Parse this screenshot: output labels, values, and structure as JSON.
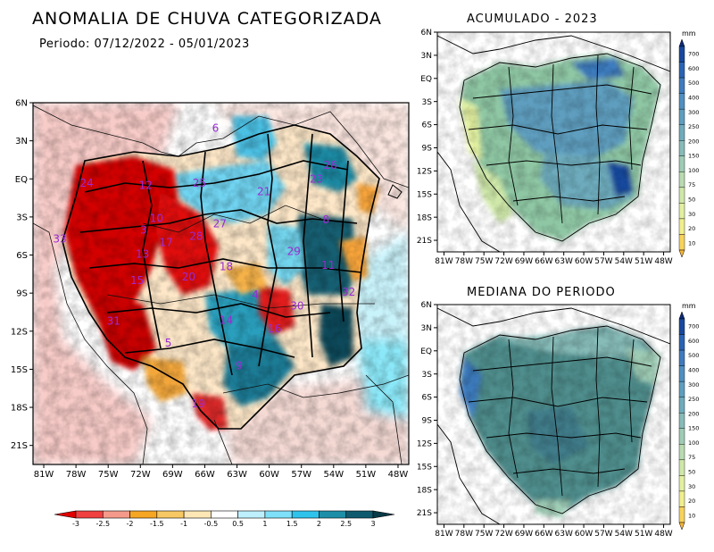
{
  "title": "ANOMALIA DE CHUVA CATEGORIZADA",
  "period": "Periodo: 07/12/2022 - 05/01/2023",
  "panels": {
    "accumulated_title": "ACUMULADO - 2023",
    "median_title": "MEDIANA DO PERIODO"
  },
  "main_map": {
    "lat_labels": [
      "6N",
      "3N",
      "EQ",
      "3S",
      "6S",
      "9S",
      "12S",
      "15S",
      "18S",
      "21S"
    ],
    "lon_labels": [
      "81W",
      "78W",
      "75W",
      "72W",
      "69W",
      "66W",
      "63W",
      "60W",
      "57W",
      "54W",
      "51W",
      "48W"
    ],
    "basin_numbers": [
      {
        "id": "6",
        "lon": -65,
        "lat": 3.7
      },
      {
        "id": "12",
        "lon": -71.5,
        "lat": -0.8
      },
      {
        "id": "24",
        "lon": -77,
        "lat": -0.6
      },
      {
        "id": "25",
        "lon": -66.5,
        "lat": -0.6
      },
      {
        "id": "21",
        "lon": -60.5,
        "lat": -1.3
      },
      {
        "id": "23",
        "lon": -55.6,
        "lat": -0.3
      },
      {
        "id": "26",
        "lon": -54.3,
        "lat": 0.8
      },
      {
        "id": "10",
        "lon": -70.5,
        "lat": -3.4
      },
      {
        "id": "3",
        "lon": -71.7,
        "lat": -4.3
      },
      {
        "id": "27",
        "lon": -64.6,
        "lat": -3.8
      },
      {
        "id": "28",
        "lon": -66.8,
        "lat": -4.8
      },
      {
        "id": "17",
        "lon": -69.6,
        "lat": -5.3
      },
      {
        "id": "8",
        "lon": -54.7,
        "lat": -3.5
      },
      {
        "id": "33",
        "lon": -79.5,
        "lat": -5.0
      },
      {
        "id": "13",
        "lon": -71.8,
        "lat": -6.2
      },
      {
        "id": "29",
        "lon": -57.7,
        "lat": -6.0
      },
      {
        "id": "18",
        "lon": -64,
        "lat": -7.2
      },
      {
        "id": "11",
        "lon": -54.5,
        "lat": -7.1
      },
      {
        "id": "15",
        "lon": -72.3,
        "lat": -8.3
      },
      {
        "id": "20",
        "lon": -67.5,
        "lat": -8.0
      },
      {
        "id": "4",
        "lon": -61.3,
        "lat": -9.4
      },
      {
        "id": "32",
        "lon": -52.6,
        "lat": -9.2
      },
      {
        "id": "30",
        "lon": -57.4,
        "lat": -10.3
      },
      {
        "id": "14",
        "lon": -64,
        "lat": -11.4
      },
      {
        "id": "31",
        "lon": -74.5,
        "lat": -11.5
      },
      {
        "id": "16",
        "lon": -59.5,
        "lat": -12.1
      },
      {
        "id": "5",
        "lon": -69.4,
        "lat": -13.2
      },
      {
        "id": "9",
        "lon": -62.8,
        "lat": -15.0
      },
      {
        "id": "19",
        "lon": -66.6,
        "lat": -18.0
      }
    ]
  },
  "anomaly_colorbar": {
    "labels": [
      "-3",
      "-2.5",
      "-2",
      "-1.5",
      "-1",
      "-0.5",
      "0.5",
      "1",
      "1.5",
      "2",
      "2.5",
      "3"
    ],
    "colors": [
      "#e00000",
      "#f04040",
      "#f59a8a",
      "#f5a623",
      "#f8c864",
      "#fce6b4",
      "#ffffff",
      "#bdeffd",
      "#7fe0f9",
      "#2fc3ec",
      "#1d8ea8",
      "#0f5a6e",
      "#083a47"
    ]
  },
  "small_maps": {
    "lat_labels": [
      "6N",
      "3N",
      "EQ",
      "3S",
      "6S",
      "9S",
      "12S",
      "15S",
      "18S",
      "21S"
    ],
    "lon_labels": [
      "81W",
      "78W",
      "75W",
      "72W",
      "69W",
      "66W",
      "63W",
      "60W",
      "57W",
      "54W",
      "51W",
      "48W"
    ]
  },
  "mm_colorbar": {
    "unit": "mm",
    "labels": [
      "700",
      "600",
      "500",
      "400",
      "300",
      "250",
      "200",
      "150",
      "100",
      "75",
      "50",
      "30",
      "20",
      "10"
    ],
    "colors": [
      "#0a2a7a",
      "#17489e",
      "#2a63b4",
      "#3e7bbf",
      "#4f8fc1",
      "#5e9ebf",
      "#6eacbd",
      "#86bbb8",
      "#9fccb5",
      "#b9dbb0",
      "#cfe8a9",
      "#e2f0a0",
      "#f0ef8c",
      "#f8d35a",
      "#f7b53a"
    ]
  },
  "colors": {
    "strong_negative": "#d00000",
    "strong_positive": "#0a5063",
    "accumulated_base": "#8fc7a4",
    "median_base": "#4f8e8d",
    "basin_label": "#9a2bd4"
  }
}
